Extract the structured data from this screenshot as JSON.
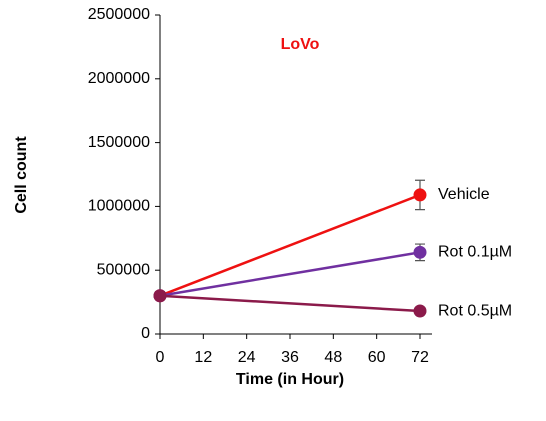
{
  "chart_data": {
    "type": "line",
    "title": "LoVo",
    "title_color": "#ee1111",
    "x_label": "Time (in Hour)",
    "y_label": "Cell count",
    "x": [
      0,
      72
    ],
    "series": [
      {
        "name": "Vehicle",
        "color": "#ee1111",
        "values": [
          300000,
          1090000
        ],
        "errors": [
          0,
          115000
        ]
      },
      {
        "name": "Rot 0.1µM",
        "color": "#7030a0",
        "values": [
          300000,
          640000
        ],
        "errors": [
          0,
          65000
        ]
      },
      {
        "name": "Rot 0.5µM",
        "color": "#8b1a4a",
        "values": [
          300000,
          180000
        ],
        "errors": [
          0,
          20000
        ]
      }
    ],
    "xlim": [
      0,
      72
    ],
    "xticks": [
      0,
      12,
      24,
      36,
      48,
      60,
      72
    ],
    "ylim": [
      0,
      2500000
    ],
    "yticks": [
      0,
      500000,
      1000000,
      1500000,
      2000000,
      2500000
    ],
    "grid": false
  }
}
